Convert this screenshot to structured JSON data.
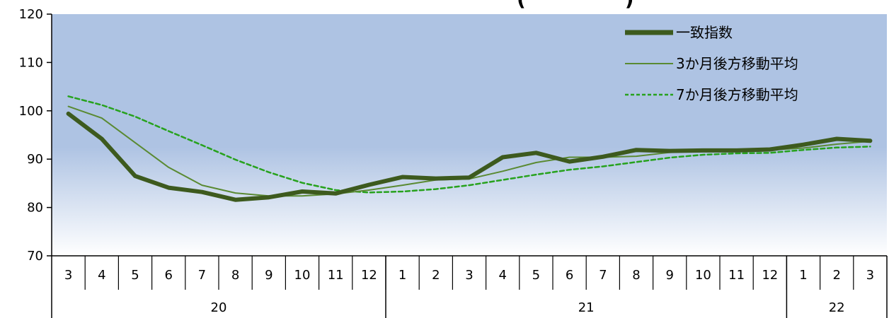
{
  "chart_data": {
    "type": "line",
    "title": "",
    "visible_title_fragment": "(　　　　　)",
    "xlabel": "",
    "ylabel": "",
    "ylim": [
      70,
      120
    ],
    "yticks": [
      70,
      80,
      90,
      100,
      110,
      120
    ],
    "categories": [
      "3",
      "4",
      "5",
      "6",
      "7",
      "8",
      "9",
      "10",
      "11",
      "12",
      "1",
      "2",
      "3",
      "4",
      "5",
      "6",
      "7",
      "8",
      "9",
      "10",
      "11",
      "12",
      "1",
      "2",
      "3"
    ],
    "year_groups": [
      {
        "label": "20",
        "count": 10
      },
      {
        "label": "21",
        "count": 12
      },
      {
        "label": "22",
        "count": 3
      }
    ],
    "legend_position": "top-right",
    "series": [
      {
        "name": "一致指数",
        "color": "#3d5a1e",
        "style": "thick",
        "values": [
          99.4,
          94.2,
          86.5,
          84.1,
          83.2,
          81.6,
          82.1,
          83.3,
          82.9,
          84.7,
          86.3,
          86.0,
          86.2,
          90.4,
          91.3,
          89.5,
          90.5,
          91.9,
          91.7,
          91.8,
          91.8,
          92.0,
          93.0,
          94.2,
          93.8
        ]
      },
      {
        "name": "3か月後方移動平均",
        "color": "#5a8a32",
        "style": "thin",
        "values": [
          100.9,
          98.5,
          93.4,
          88.3,
          84.6,
          83.0,
          82.4,
          82.4,
          82.8,
          83.6,
          84.6,
          85.7,
          85.9,
          87.5,
          89.3,
          90.4,
          90.4,
          90.6,
          91.4,
          91.7,
          91.8,
          91.9,
          92.3,
          93.1,
          93.7
        ]
      },
      {
        "name": "7か月後方移動平均",
        "color": "#27a21d",
        "style": "dashed",
        "values": [
          103.0,
          101.2,
          98.8,
          95.8,
          92.9,
          89.9,
          87.3,
          85.1,
          83.6,
          83.1,
          83.3,
          83.8,
          84.6,
          85.7,
          86.8,
          87.8,
          88.5,
          89.4,
          90.3,
          90.9,
          91.2,
          91.3,
          91.9,
          92.4,
          92.6
        ]
      }
    ],
    "background_gradient": [
      "#aec3e3",
      "#ffffff"
    ],
    "grid": false
  }
}
